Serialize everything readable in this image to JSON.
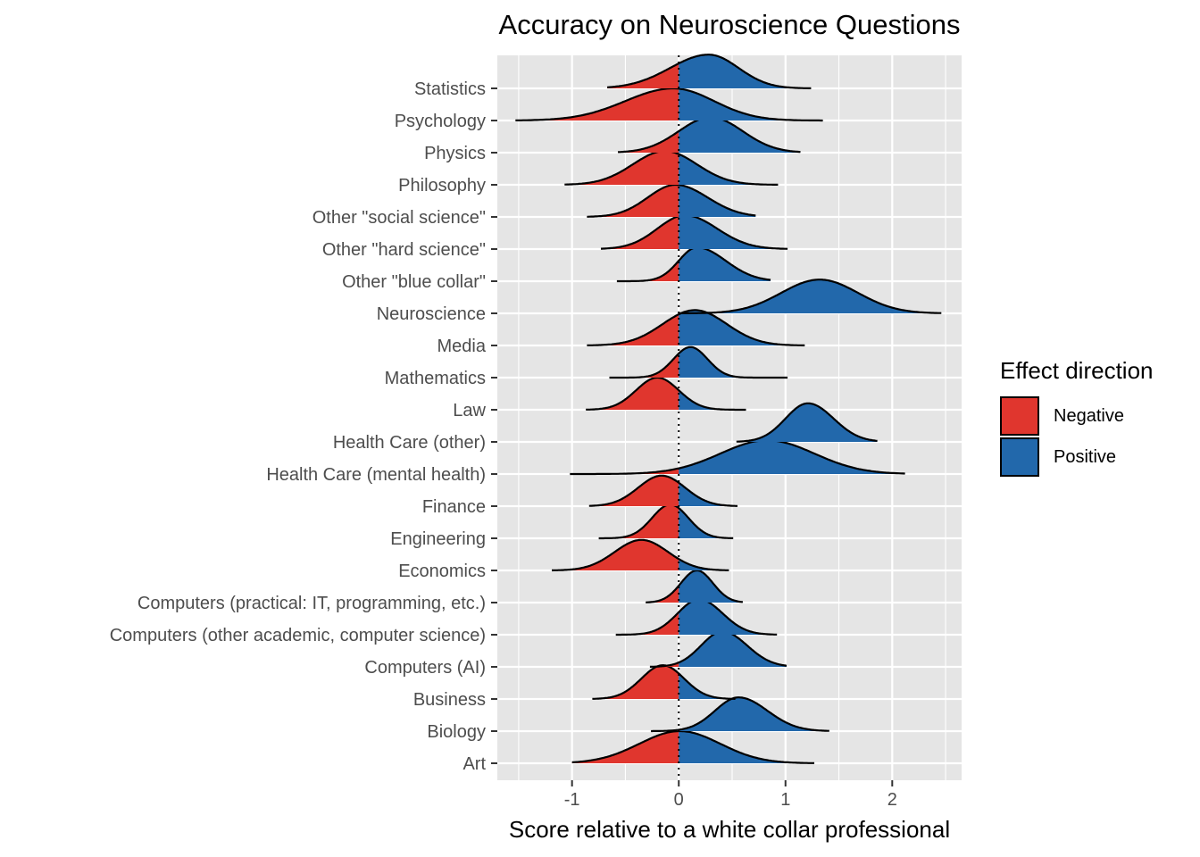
{
  "chart_data": {
    "type": "ridgeline",
    "title": "Accuracy on Neuroscience Questions",
    "xlabel": "Score relative to a white collar professional",
    "ylabel": "",
    "xlim": [
      -1.7,
      2.65
    ],
    "x_ticks": [
      -1,
      0,
      1,
      2
    ],
    "x_tick_labels": [
      "-1",
      "0",
      "1",
      "2"
    ],
    "reference_line_x": 0,
    "grid": true,
    "legend": {
      "title": "Effect direction",
      "position": "right",
      "entries": [
        {
          "label": "Negative",
          "color": "#e0362e"
        },
        {
          "label": "Positive",
          "color": "#2268ab"
        }
      ]
    },
    "categories": [
      "Statistics",
      "Psychology",
      "Physics",
      "Philosophy",
      "Other \"social science\"",
      "Other \"hard science\"",
      "Other \"blue collar\"",
      "Neuroscience",
      "Media",
      "Mathematics",
      "Law",
      "Health Care (other)",
      "Health Care (mental health)",
      "Finance",
      "Engineering",
      "Economics",
      "Computers (practical: IT, programming, etc.)",
      "Computers (other academic, computer science)",
      "Computers (AI)",
      "Business",
      "Biology",
      "Art"
    ],
    "series": [
      {
        "category": "Statistics",
        "mode": 0.28,
        "sd_left": 0.36,
        "sd_right": 0.28,
        "range": [
          -0.67,
          1.24
        ],
        "peak": 1.05
      },
      {
        "category": "Psychology",
        "mode": -0.05,
        "sd_left": 0.45,
        "sd_right": 0.38,
        "range": [
          -1.53,
          1.35
        ],
        "peak": 1.0
      },
      {
        "category": "Physics",
        "mode": 0.3,
        "sd_left": 0.3,
        "sd_right": 0.3,
        "range": [
          -0.57,
          1.14
        ],
        "peak": 1.1
      },
      {
        "category": "Philosophy",
        "mode": -0.13,
        "sd_left": 0.3,
        "sd_right": 0.3,
        "range": [
          -1.07,
          0.93
        ],
        "peak": 1.05
      },
      {
        "category": "Other \"social science\"",
        "mode": -0.03,
        "sd_left": 0.26,
        "sd_right": 0.3,
        "range": [
          -0.86,
          0.72
        ],
        "peak": 1.0
      },
      {
        "category": "Other \"hard science\"",
        "mode": 0.06,
        "sd_left": 0.26,
        "sd_right": 0.3,
        "range": [
          -0.73,
          1.02
        ],
        "peak": 1.05
      },
      {
        "category": "Other \"blue collar\"",
        "mode": 0.17,
        "sd_left": 0.17,
        "sd_right": 0.27,
        "range": [
          -0.58,
          0.86
        ],
        "peak": 1.05
      },
      {
        "category": "Neuroscience",
        "mode": 1.32,
        "sd_left": 0.36,
        "sd_right": 0.36,
        "range": [
          0,
          2.46
        ],
        "peak": 1.05
      },
      {
        "category": "Media",
        "mode": 0.15,
        "sd_left": 0.3,
        "sd_right": 0.3,
        "range": [
          -0.86,
          1.18
        ],
        "peak": 1.1
      },
      {
        "category": "Mathematics",
        "mode": 0.11,
        "sd_left": 0.16,
        "sd_right": 0.16,
        "range": [
          -0.65,
          1.02
        ],
        "peak": 0.95
      },
      {
        "category": "Law",
        "mode": -0.2,
        "sd_left": 0.2,
        "sd_right": 0.2,
        "range": [
          -0.87,
          0.63
        ],
        "peak": 1.0
      },
      {
        "category": "Health Care (other)",
        "mode": 1.21,
        "sd_left": 0.21,
        "sd_right": 0.24,
        "range": [
          0.54,
          1.86
        ],
        "peak": 1.2
      },
      {
        "category": "Health Care (mental health)",
        "mode": 0.83,
        "sd_left": 0.44,
        "sd_right": 0.44,
        "range": [
          -1.02,
          2.12
        ],
        "peak": 1.05
      },
      {
        "category": "Finance",
        "mode": -0.16,
        "sd_left": 0.22,
        "sd_right": 0.22,
        "range": [
          -0.84,
          0.55
        ],
        "peak": 0.95
      },
      {
        "category": "Engineering",
        "mode": -0.08,
        "sd_left": 0.17,
        "sd_right": 0.17,
        "range": [
          -0.75,
          0.51
        ],
        "peak": 1.05
      },
      {
        "category": "Economics",
        "mode": -0.35,
        "sd_left": 0.25,
        "sd_right": 0.25,
        "range": [
          -1.19,
          0.47
        ],
        "peak": 0.95
      },
      {
        "category": "Computers (practical: IT, programming, etc.)",
        "mode": 0.17,
        "sd_left": 0.15,
        "sd_right": 0.15,
        "range": [
          -0.31,
          0.6
        ],
        "peak": 1.0
      },
      {
        "category": "Computers (other academic, computer science)",
        "mode": 0.19,
        "sd_left": 0.2,
        "sd_right": 0.22,
        "range": [
          -0.59,
          0.92
        ],
        "peak": 1.1
      },
      {
        "category": "Computers (AI)",
        "mode": 0.41,
        "sd_left": 0.2,
        "sd_right": 0.23,
        "range": [
          -0.27,
          1.01
        ],
        "peak": 1.1
      },
      {
        "category": "Business",
        "mode": -0.15,
        "sd_left": 0.2,
        "sd_right": 0.2,
        "range": [
          -0.81,
          0.53
        ],
        "peak": 1.05
      },
      {
        "category": "Biology",
        "mode": 0.56,
        "sd_left": 0.22,
        "sd_right": 0.27,
        "range": [
          -0.26,
          1.41
        ],
        "peak": 1.05
      },
      {
        "category": "Art",
        "mode": 0.01,
        "sd_left": 0.38,
        "sd_right": 0.38,
        "range": [
          -1.0,
          1.27
        ],
        "peak": 1.0
      }
    ]
  }
}
